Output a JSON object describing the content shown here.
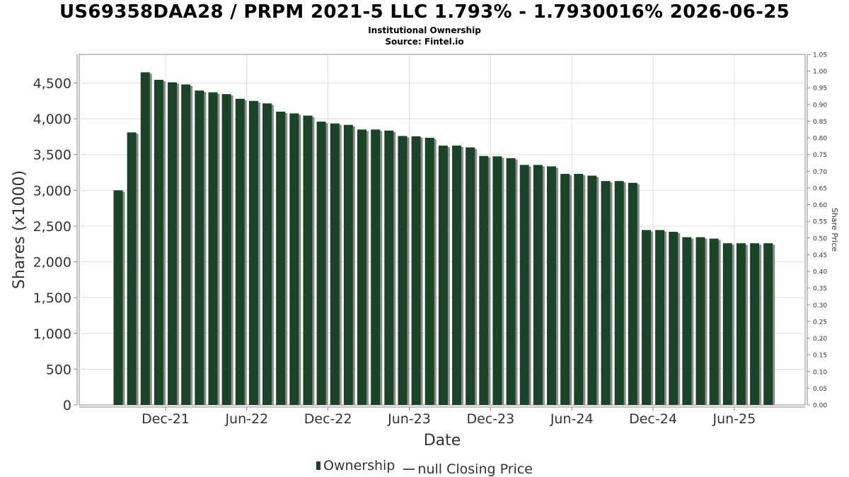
{
  "header": {
    "title": "US69358DAA28 / PRPM 2021-5 LLC 1.793% - 1.7930016% 2026-06-25",
    "subtitle": "Institutional Ownership",
    "source": "Source: Fintel.io"
  },
  "legend": {
    "ownership_label": "Ownership",
    "price_label": "null Closing Price"
  },
  "colors": {
    "bar": "#1b4328",
    "bar_shadow": "#8c8c8c",
    "grid": "#dddddd",
    "axis": "#888888"
  },
  "chart_data": {
    "type": "bar",
    "title": "US69358DAA28 / PRPM 2021-5 LLC 1.793% - 1.7930016% 2026-06-25",
    "xlabel": "Date",
    "ylabel": "Shares (x1000)",
    "y2label": "Share Price",
    "ylim": [
      0,
      4900
    ],
    "y_ticks": [
      0,
      500,
      1000,
      1500,
      2000,
      2500,
      3000,
      3500,
      4000,
      4500
    ],
    "y_tick_labels": [
      "0",
      "500",
      "1,000",
      "1,500",
      "2,000",
      "2,500",
      "3,000",
      "3,500",
      "4,000",
      "4,500"
    ],
    "y2lim": [
      0,
      1.05
    ],
    "y2_ticks": [
      0,
      0.05,
      0.1,
      0.15,
      0.2,
      0.25,
      0.3,
      0.35,
      0.4,
      0.45,
      0.5,
      0.55,
      0.6,
      0.65,
      0.7,
      0.75,
      0.8,
      0.85,
      0.9,
      0.95,
      1.0,
      1.05
    ],
    "y2_tick_labels": [
      "0.00",
      "0.05",
      "0.10",
      "0.15",
      "0.20",
      "0.25",
      "0.30",
      "0.35",
      "0.40",
      "0.45",
      "0.50",
      "0.55",
      "0.60",
      "0.65",
      "0.70",
      "0.75",
      "0.80",
      "0.85",
      "0.90",
      "0.95",
      "1.00",
      "1.05"
    ],
    "x_tick_labels": [
      "Dec-21",
      "Jun-22",
      "Dec-22",
      "Jun-23",
      "Dec-23",
      "Jun-24",
      "Dec-24",
      "Jun-25"
    ],
    "x_tick_positions": [
      3.5,
      9.5,
      15.5,
      21.5,
      27.5,
      33.5,
      39.5,
      45.5
    ],
    "grid": true,
    "legend_position": "bottom",
    "series": [
      {
        "name": "Ownership",
        "values": [
          3000,
          3810,
          4650,
          4545,
          4510,
          4480,
          4395,
          4370,
          4345,
          4280,
          4250,
          4215,
          4100,
          4075,
          4045,
          3960,
          3935,
          3915,
          3850,
          3850,
          3835,
          3760,
          3755,
          3735,
          3625,
          3625,
          3600,
          3480,
          3475,
          3450,
          3355,
          3355,
          3335,
          3230,
          3230,
          3205,
          3130,
          3130,
          3105,
          2445,
          2445,
          2420,
          2345,
          2345,
          2325,
          2260,
          2260,
          2260,
          2260
        ]
      }
    ]
  }
}
